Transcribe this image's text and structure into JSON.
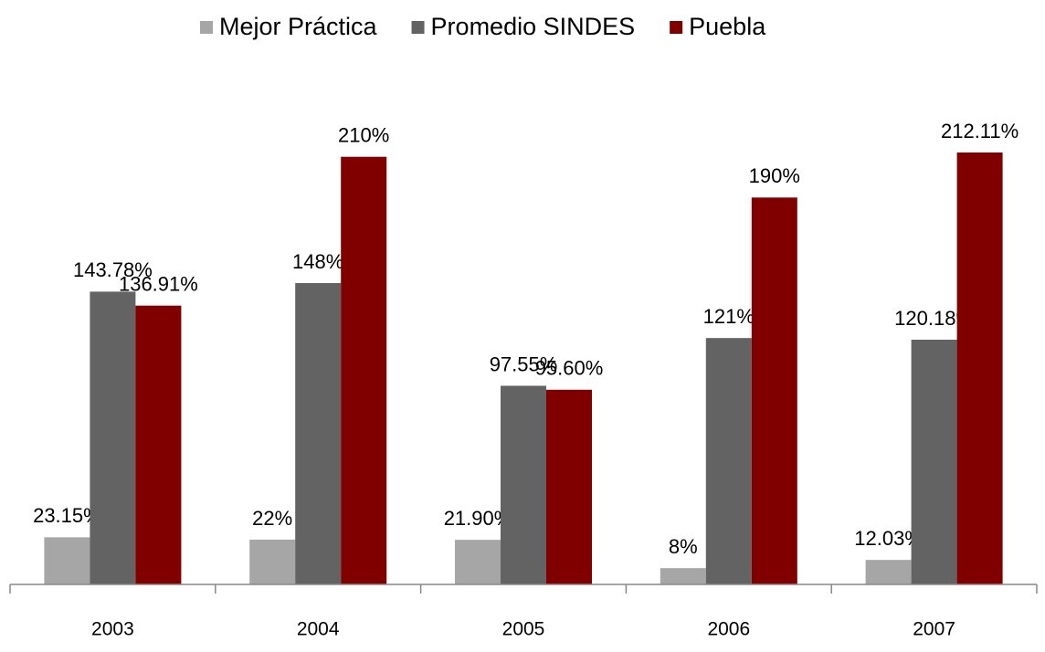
{
  "chart_data": {
    "type": "bar",
    "categories": [
      "2003",
      "2004",
      "2005",
      "2006",
      "2007"
    ],
    "series": [
      {
        "name": "Mejor Práctica",
        "color": "#a6a6a6",
        "values": [
          23.15,
          22,
          21.9,
          8,
          12.03
        ],
        "value_labels": [
          "23.15%",
          "22%",
          "21.90%",
          "8%",
          "12.03%"
        ]
      },
      {
        "name": "Promedio SINDES",
        "color": "#636363",
        "values": [
          143.78,
          148,
          97.55,
          121,
          120.18
        ],
        "value_labels": [
          "143.78%",
          "148%",
          "97.55%",
          "121%",
          "120.18%"
        ]
      },
      {
        "name": "Puebla",
        "color": "#800000",
        "values": [
          136.91,
          210,
          95.6,
          190,
          212.11
        ],
        "value_labels": [
          "136.91%",
          "210%",
          "95.60%",
          "190%",
          "212.11%"
        ]
      }
    ],
    "legend": "top"
  }
}
